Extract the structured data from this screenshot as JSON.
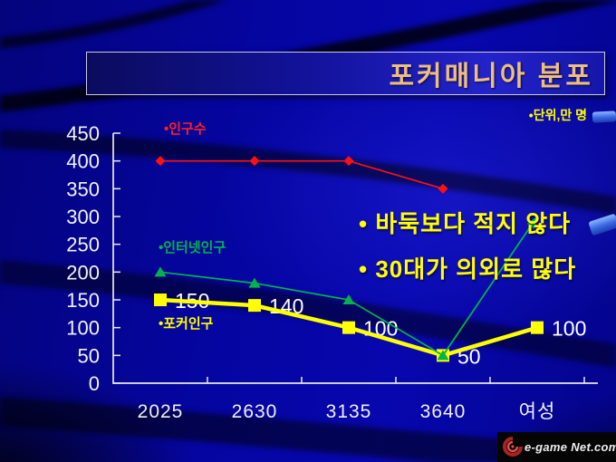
{
  "title": "포커매니아 분포",
  "unit_label": "•단위,만 명",
  "annotations": {
    "line1": "• 바둑보다 적지 않다",
    "line2": "• 30대가 의외로 많다"
  },
  "logo": {
    "text": "e-game Net.com"
  },
  "colors": {
    "background_blue": "#0505a0",
    "title_text": "#edbd84",
    "axis": "#e8e8e8",
    "red_series": "#ff0000",
    "green_series": "#00b34d",
    "yellow_series": "#ffff00",
    "annotation_text": "#ffff00",
    "data_label_text": "#ffffff"
  },
  "chart_data": {
    "type": "line",
    "title": "포커매니아 분포",
    "unit": "만 명",
    "categories": [
      "2025",
      "2630",
      "3135",
      "3640",
      "여성"
    ],
    "series": [
      {
        "name": "인구수",
        "legend_label": "•인구수",
        "color": "#ff1010",
        "marker": "diamond",
        "values": [
          400,
          400,
          400,
          350,
          null
        ]
      },
      {
        "name": "인터넷인구",
        "legend_label": "•인터넷인구",
        "color": "#00b34d",
        "marker": "triangle",
        "values": [
          200,
          180,
          150,
          50,
          null
        ],
        "arrow": {
          "from": {
            "category_index": 3,
            "value": 50
          },
          "to": {
            "category_index": 4,
            "value": 300
          }
        }
      },
      {
        "name": "포커인구",
        "legend_label": "•포커인구",
        "color": "#ffff00",
        "marker": "square",
        "values": [
          150,
          140,
          100,
          50,
          100
        ],
        "data_labels": [
          "150",
          "140",
          "100",
          "50",
          "100"
        ]
      }
    ],
    "ylim": [
      0,
      450
    ],
    "ytick_labels": [
      "0",
      "50",
      "100",
      "150",
      "200",
      "250",
      "300",
      "350",
      "400",
      "450"
    ],
    "grid": false,
    "legend_position": "inline-labels"
  }
}
